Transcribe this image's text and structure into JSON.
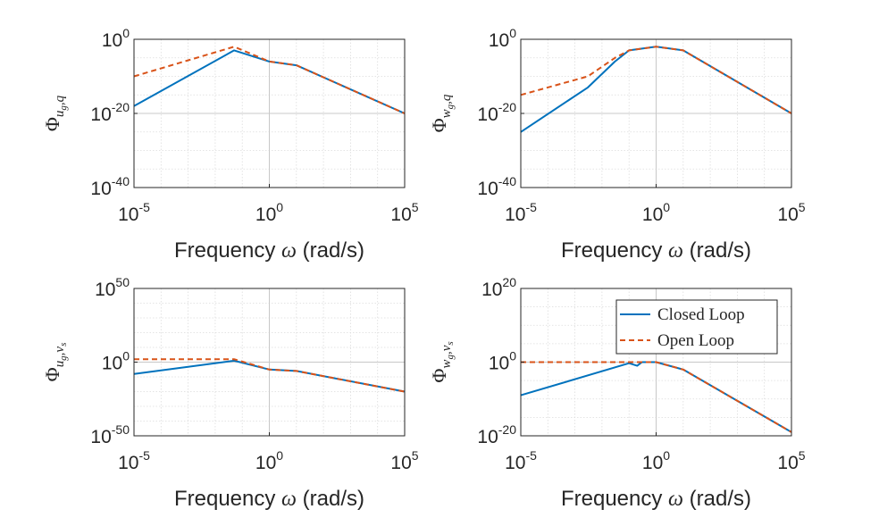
{
  "chart_data": [
    {
      "type": "line",
      "panel": "top-left",
      "xlabel": "Frequency ω (rad/s)",
      "ylabel": "Φ u_g,q",
      "ylabel_main": "Φ",
      "ylabel_sub1": "u",
      "ylabel_sub2": "g",
      "ylabel_rest": ",q",
      "x_scale": "log",
      "y_scale": "log",
      "xlim": [
        1e-05,
        100000
      ],
      "ylim": [
        1e-40,
        1
      ],
      "grid": true,
      "x_ticks": [
        {
          "base": "10",
          "exp": "-5"
        },
        {
          "base": "10",
          "exp": "0"
        },
        {
          "base": "10",
          "exp": "5"
        }
      ],
      "y_ticks": [
        {
          "base": "10",
          "exp": "-40"
        },
        {
          "base": "10",
          "exp": "-20"
        },
        {
          "base": "10",
          "exp": "0"
        }
      ],
      "series": [
        {
          "name": "Closed Loop",
          "color": "#0072BD",
          "style": "solid",
          "x": [
            1e-05,
            0.05,
            1,
            10,
            100000
          ],
          "y": [
            1e-18,
            0.001,
            1e-06,
            1e-07,
            1e-20
          ]
        },
        {
          "name": "Open Loop",
          "color": "#D95319",
          "style": "dashed",
          "x": [
            1e-05,
            0.05,
            1,
            10,
            100000
          ],
          "y": [
            1e-10,
            0.01,
            1e-06,
            1e-07,
            1e-20
          ]
        }
      ]
    },
    {
      "type": "line",
      "panel": "top-right",
      "xlabel": "Frequency ω (rad/s)",
      "ylabel": "Φ w_g,q",
      "ylabel_main": "Φ",
      "ylabel_sub1": "w",
      "ylabel_sub2": "g",
      "ylabel_rest": ",q",
      "x_scale": "log",
      "y_scale": "log",
      "xlim": [
        1e-05,
        100000
      ],
      "ylim": [
        1e-40,
        1
      ],
      "grid": true,
      "x_ticks": [
        {
          "base": "10",
          "exp": "-5"
        },
        {
          "base": "10",
          "exp": "0"
        },
        {
          "base": "10",
          "exp": "5"
        }
      ],
      "y_ticks": [
        {
          "base": "10",
          "exp": "-40"
        },
        {
          "base": "10",
          "exp": "-20"
        },
        {
          "base": "10",
          "exp": "0"
        }
      ],
      "series": [
        {
          "name": "Closed Loop",
          "color": "#0072BD",
          "style": "solid",
          "x": [
            1e-05,
            0.003,
            0.03,
            0.1,
            1,
            10,
            100000
          ],
          "y": [
            1e-25,
            1e-13,
            1e-06,
            0.001,
            0.01,
            0.001,
            1e-20
          ]
        },
        {
          "name": "Open Loop",
          "color": "#D95319",
          "style": "dashed",
          "x": [
            1e-05,
            0.003,
            0.03,
            0.1,
            1,
            10,
            100000
          ],
          "y": [
            1e-15,
            1e-10,
            1e-05,
            0.001,
            0.01,
            0.001,
            1e-20
          ]
        }
      ]
    },
    {
      "type": "line",
      "panel": "bottom-left",
      "xlabel": "Frequency ω (rad/s)",
      "ylabel": "Φ u_g,v_s",
      "ylabel_main": "Φ",
      "ylabel_sub1": "u",
      "ylabel_sub2": "g",
      "ylabel_rest": ",v",
      "ylabel_sub3": "s",
      "x_scale": "log",
      "y_scale": "log",
      "xlim": [
        1e-05,
        100000
      ],
      "ylim": [
        1e-50,
        1e+50
      ],
      "grid": true,
      "x_ticks": [
        {
          "base": "10",
          "exp": "-5"
        },
        {
          "base": "10",
          "exp": "0"
        },
        {
          "base": "10",
          "exp": "5"
        }
      ],
      "y_ticks": [
        {
          "base": "10",
          "exp": "-50"
        },
        {
          "base": "10",
          "exp": "0"
        },
        {
          "base": "10",
          "exp": "50"
        }
      ],
      "series": [
        {
          "name": "Closed Loop",
          "color": "#0072BD",
          "style": "solid",
          "x": [
            1e-05,
            0.05,
            1,
            10,
            100000
          ],
          "y": [
            1e-08,
            10.0,
            1e-05,
            1e-06,
            1e-20
          ]
        },
        {
          "name": "Open Loop",
          "color": "#D95319",
          "style": "dashed",
          "x": [
            1e-05,
            0.05,
            1,
            10,
            100000
          ],
          "y": [
            100.0,
            100.0,
            1e-05,
            1e-06,
            1e-20
          ]
        }
      ]
    },
    {
      "type": "line",
      "panel": "bottom-right",
      "xlabel": "Frequency ω (rad/s)",
      "ylabel": "Φ w_g,v_s",
      "ylabel_main": "Φ",
      "ylabel_sub1": "w",
      "ylabel_sub2": "g",
      "ylabel_rest": ",v",
      "ylabel_sub3": "s",
      "x_scale": "log",
      "y_scale": "log",
      "xlim": [
        1e-05,
        100000
      ],
      "ylim": [
        1e-20,
        1e+20
      ],
      "grid": true,
      "legend_position": "top-right",
      "x_ticks": [
        {
          "base": "10",
          "exp": "-5"
        },
        {
          "base": "10",
          "exp": "0"
        },
        {
          "base": "10",
          "exp": "5"
        }
      ],
      "y_ticks": [
        {
          "base": "10",
          "exp": "-20"
        },
        {
          "base": "10",
          "exp": "0"
        },
        {
          "base": "10",
          "exp": "20"
        }
      ],
      "series": [
        {
          "name": "Closed Loop",
          "color": "#0072BD",
          "style": "solid",
          "x": [
            1e-05,
            0.1,
            0.2,
            0.3,
            1,
            10,
            100000
          ],
          "y": [
            1e-09,
            0.5,
            0.1,
            1,
            1,
            0.01,
            1e-19
          ]
        },
        {
          "name": "Open Loop",
          "color": "#D95319",
          "style": "dashed",
          "x": [
            1e-05,
            0.1,
            0.3,
            1,
            10,
            100000
          ],
          "y": [
            1,
            1,
            1,
            1,
            0.01,
            1e-19
          ]
        }
      ]
    }
  ],
  "legend": {
    "entries": [
      {
        "label": "Closed Loop",
        "color": "#0072BD",
        "style": "solid"
      },
      {
        "label": "Open Loop",
        "color": "#D95319",
        "style": "dashed"
      }
    ]
  }
}
